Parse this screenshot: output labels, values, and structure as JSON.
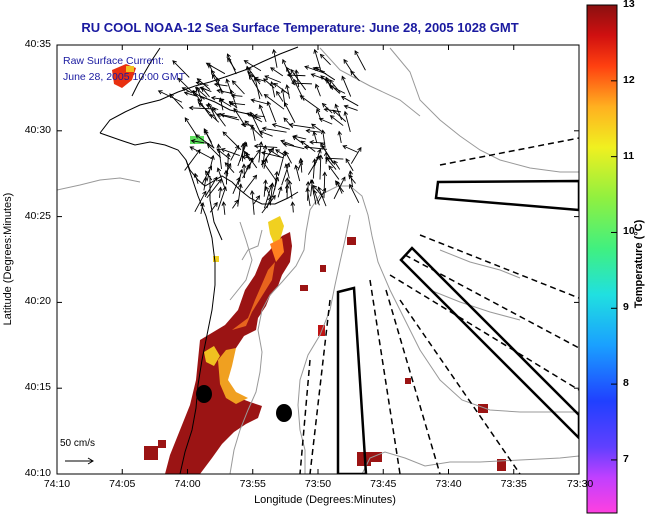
{
  "title": "RU COOL  NOAA-12  Sea Surface Temperature:  June 28, 2005 1028 GMT",
  "legend": {
    "line1": "Raw Surface Current:",
    "line2": "June 28, 2005 10:00 GMT"
  },
  "axes": {
    "x_title": "Longitude (Degrees:Minutes)",
    "y_title": "Latitude (Degrees:Minutes)",
    "x_ticks": [
      "74:10",
      "74:05",
      "74:00",
      "73:55",
      "73:50",
      "73:45",
      "73:40",
      "73:35",
      "73:30"
    ],
    "y_ticks": [
      "40:35",
      "40:30",
      "40:25",
      "40:20",
      "40:15",
      "40:10"
    ]
  },
  "colorbar": {
    "title": "Temperature (°C)",
    "ticks": [
      "13",
      "12",
      "11",
      "10",
      "9",
      "8",
      "7"
    ],
    "range": [
      6.3,
      13
    ]
  },
  "scale": {
    "label": "50 cm/s"
  },
  "colors": {
    "title_text": "#1a1aa0",
    "warm": "#9b1414",
    "orange": "#e8641e"
  }
}
